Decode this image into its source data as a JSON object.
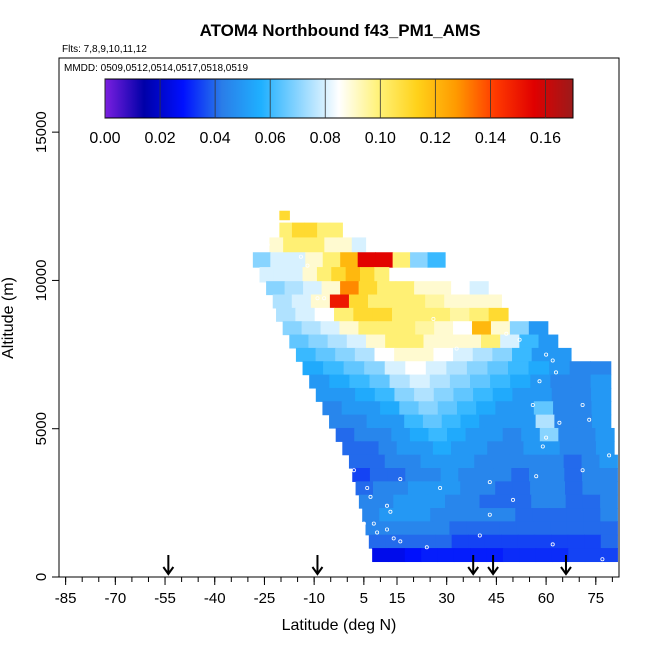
{
  "chart_data": {
    "type": "heatmap",
    "title": "ATOM4 Northbound f43_PM1_AMS",
    "subtitle_flights": "Flts: 7,8,9,10,11,12",
    "subtitle_dates": "MMDD: 0509,0512,0514,0517,0518,0519",
    "xlabel": "Latitude (deg N)",
    "ylabel": "Altitude (m)",
    "xlim": [
      -87,
      82
    ],
    "ylim": [
      0,
      17500
    ],
    "x_ticks": [
      -85,
      -70,
      -55,
      -40,
      -25,
      -10,
      5,
      15,
      30,
      45,
      60,
      75
    ],
    "x_tick_labels": [
      "-85",
      "-70",
      "-55",
      "-40",
      "-25",
      "-10",
      "5",
      "15",
      "30",
      "45",
      "60",
      "75"
    ],
    "x_minor_step": 5,
    "y_ticks": [
      0,
      5000,
      10000,
      15000
    ],
    "y_tick_labels": [
      "0",
      "5000",
      "10000",
      "15000"
    ],
    "colorbar": {
      "min": 0.0,
      "max": 0.17,
      "ticks": [
        0.0,
        0.02,
        0.04,
        0.06,
        0.08,
        0.1,
        0.12,
        0.14,
        0.16
      ],
      "tick_labels": [
        "0.00",
        "0.02",
        "0.04",
        "0.06",
        "0.08",
        "0.10",
        "0.12",
        "0.14",
        "0.16"
      ],
      "colors": [
        "#7b1fe0",
        "#0000a8",
        "#0010ff",
        "#2a7de8",
        "#1fb0ff",
        "#8fd6ff",
        "#ffffff",
        "#fff27a",
        "#ffd21a",
        "#ff9a00",
        "#ff3a00",
        "#e00000",
        "#9c1a1a"
      ]
    },
    "profile_markers_lat": [
      -54,
      -9,
      38,
      44,
      66
    ],
    "altitude_bands": [
      {
        "alt": 12200,
        "h": 300,
        "lat_start": -19,
        "lat_end": -19,
        "values": [
          0.11
        ]
      },
      {
        "alt": 11700,
        "h": 500,
        "lat_start": -19,
        "lat_end": -3,
        "values": [
          0.1,
          0.11,
          0.11,
          0.1,
          0.1
        ]
      },
      {
        "alt": 11200,
        "h": 500,
        "lat_start": -22,
        "lat_end": 4,
        "values": [
          0.09,
          0.1,
          0.1,
          0.1,
          0.09,
          0.09,
          0.08
        ]
      },
      {
        "alt": 10700,
        "h": 500,
        "lat_start": -27,
        "lat_end": 28,
        "values": [
          0.07,
          0.08,
          0.08,
          0.09,
          0.1,
          0.12,
          0.155,
          0.155,
          0.1,
          0.07,
          0.06
        ]
      },
      {
        "alt": 10200,
        "h": 500,
        "lat_start": -25,
        "lat_end": 11,
        "values": [
          0.08,
          0.08,
          0.08,
          0.09,
          0.1,
          0.11,
          0.12,
          0.11,
          0.1
        ]
      },
      {
        "alt": 9750,
        "h": 450,
        "lat_start": -23,
        "lat_end": 41,
        "values": [
          0.07,
          0.075,
          0.08,
          0.09,
          0.13,
          0.11,
          0.1,
          0.1,
          0.09,
          0.09,
          0.085,
          0.08
        ]
      },
      {
        "alt": 9300,
        "h": 450,
        "lat_start": -21,
        "lat_end": 45,
        "values": [
          0.075,
          0.08,
          0.09,
          0.15,
          0.11,
          0.1,
          0.1,
          0.1,
          0.095,
          0.09,
          0.09,
          0.09
        ]
      },
      {
        "alt": 8850,
        "h": 450,
        "lat_start": -20,
        "lat_end": 47,
        "values": [
          0.075,
          0.08,
          0.085,
          0.1,
          0.11,
          0.11,
          0.1,
          0.1,
          0.1,
          0.095,
          0.1,
          0.11
        ]
      },
      {
        "alt": 8400,
        "h": 450,
        "lat_start": -18,
        "lat_end": 59,
        "values": [
          0.07,
          0.075,
          0.08,
          0.09,
          0.1,
          0.1,
          0.1,
          0.095,
          0.09,
          0.085,
          0.12,
          0.09,
          0.07,
          0.05
        ]
      },
      {
        "alt": 7950,
        "h": 450,
        "lat_start": -16,
        "lat_end": 62,
        "values": [
          0.065,
          0.07,
          0.075,
          0.08,
          0.09,
          0.1,
          0.1,
          0.09,
          0.09,
          0.09,
          0.1,
          0.08,
          0.06,
          0.05
        ]
      },
      {
        "alt": 7500,
        "h": 450,
        "lat_start": -14,
        "lat_end": 66,
        "values": [
          0.06,
          0.065,
          0.07,
          0.075,
          0.085,
          0.09,
          0.09,
          0.085,
          0.08,
          0.075,
          0.07,
          0.06,
          0.05,
          0.05
        ]
      },
      {
        "alt": 7050,
        "h": 450,
        "lat_start": -12,
        "lat_end": 78,
        "values": [
          0.055,
          0.06,
          0.065,
          0.07,
          0.08,
          0.085,
          0.08,
          0.075,
          0.07,
          0.065,
          0.06,
          0.055,
          0.05,
          0.045,
          0.045
        ]
      },
      {
        "alt": 6600,
        "h": 450,
        "lat_start": -10,
        "lat_end": 78,
        "values": [
          0.05,
          0.055,
          0.06,
          0.065,
          0.075,
          0.08,
          0.075,
          0.07,
          0.065,
          0.06,
          0.055,
          0.05,
          0.045,
          0.045,
          0.05
        ]
      },
      {
        "alt": 6150,
        "h": 450,
        "lat_start": -8,
        "lat_end": 78,
        "values": [
          0.05,
          0.05,
          0.055,
          0.06,
          0.07,
          0.075,
          0.07,
          0.065,
          0.06,
          0.055,
          0.05,
          0.05,
          0.045,
          0.045,
          0.05
        ]
      },
      {
        "alt": 5700,
        "h": 450,
        "lat_start": -6,
        "lat_end": 78,
        "values": [
          0.045,
          0.05,
          0.05,
          0.055,
          0.065,
          0.07,
          0.065,
          0.06,
          0.055,
          0.05,
          0.05,
          0.065,
          0.045,
          0.045,
          0.05
        ]
      },
      {
        "alt": 5250,
        "h": 450,
        "lat_start": -4,
        "lat_end": 78,
        "values": [
          0.045,
          0.045,
          0.05,
          0.05,
          0.06,
          0.065,
          0.06,
          0.055,
          0.05,
          0.05,
          0.05,
          0.075,
          0.045,
          0.045,
          0.05
        ]
      },
      {
        "alt": 4800,
        "h": 450,
        "lat_start": -2,
        "lat_end": 79,
        "values": [
          0.04,
          0.045,
          0.045,
          0.05,
          0.055,
          0.06,
          0.055,
          0.05,
          0.05,
          0.045,
          0.05,
          0.07,
          0.045,
          0.045,
          0.05
        ]
      },
      {
        "alt": 4350,
        "h": 450,
        "lat_start": 0,
        "lat_end": 79,
        "values": [
          0.04,
          0.04,
          0.045,
          0.05,
          0.05,
          0.055,
          0.05,
          0.05,
          0.045,
          0.045,
          0.05,
          0.05,
          0.045,
          0.045,
          0.05
        ]
      },
      {
        "alt": 3900,
        "h": 450,
        "lat_start": 2,
        "lat_end": 80,
        "values": [
          0.04,
          0.04,
          0.045,
          0.045,
          0.05,
          0.05,
          0.05,
          0.045,
          0.045,
          0.045,
          0.045,
          0.045,
          0.04,
          0.045,
          0.05
        ]
      },
      {
        "alt": 3450,
        "h": 450,
        "lat_start": 3,
        "lat_end": 80,
        "values": [
          0.035,
          0.04,
          0.04,
          0.045,
          0.045,
          0.05,
          0.045,
          0.045,
          0.045,
          0.04,
          0.045,
          0.045,
          0.04,
          0.045,
          0.045
        ]
      },
      {
        "alt": 3000,
        "h": 450,
        "lat_start": 4,
        "lat_end": 80,
        "values": [
          0.04,
          0.045,
          0.045,
          0.05,
          0.05,
          0.05,
          0.045,
          0.045,
          0.04,
          0.04,
          0.045,
          0.045,
          0.04,
          0.045,
          0.045
        ]
      },
      {
        "alt": 2550,
        "h": 450,
        "lat_start": 5,
        "lat_end": 80,
        "values": [
          0.045,
          0.045,
          0.05,
          0.05,
          0.05,
          0.045,
          0.045,
          0.04,
          0.04,
          0.04,
          0.045,
          0.045,
          0.04,
          0.04,
          0.045
        ]
      },
      {
        "alt": 2100,
        "h": 450,
        "lat_start": 6,
        "lat_end": 80,
        "values": [
          0.045,
          0.05,
          0.05,
          0.05,
          0.045,
          0.045,
          0.045,
          0.045,
          0.045,
          0.04,
          0.04,
          0.04,
          0.04,
          0.04,
          0.045
        ]
      },
      {
        "alt": 1650,
        "h": 450,
        "lat_start": 7,
        "lat_end": 80,
        "values": [
          0.045,
          0.045,
          0.045,
          0.045,
          0.045,
          0.04,
          0.04,
          0.04,
          0.04,
          0.04,
          0.04,
          0.04,
          0.04,
          0.04,
          0.04
        ]
      },
      {
        "alt": 1200,
        "h": 450,
        "lat_start": 8,
        "lat_end": 80,
        "values": [
          0.04,
          0.04,
          0.04,
          0.04,
          0.04,
          0.035,
          0.035,
          0.035,
          0.035,
          0.035,
          0.035,
          0.035,
          0.035,
          0.035,
          0.04
        ]
      },
      {
        "alt": 750,
        "h": 450,
        "lat_start": 9,
        "lat_end": 80,
        "values": [
          0.025,
          0.025,
          0.028,
          0.03,
          0.03,
          0.03,
          0.03,
          0.03,
          0.032,
          0.032,
          0.032,
          0.032,
          0.035,
          0.035,
          0.035
        ]
      }
    ],
    "sample_points": [
      [
        -24,
        11200
      ],
      [
        -14,
        10800
      ],
      [
        -12,
        10500
      ],
      [
        -7,
        9400
      ],
      [
        -9,
        9400
      ],
      [
        14,
        10200
      ],
      [
        24,
        10300
      ],
      [
        26,
        8700
      ],
      [
        33,
        7700
      ],
      [
        48,
        8200
      ],
      [
        52,
        8000
      ],
      [
        60,
        7500
      ],
      [
        63,
        6900
      ],
      [
        58,
        6600
      ],
      [
        71,
        5800
      ],
      [
        64,
        5200
      ],
      [
        60,
        4700
      ],
      [
        59,
        4400
      ],
      [
        79,
        4100
      ],
      [
        2,
        3600
      ],
      [
        16,
        3300
      ],
      [
        6,
        3000
      ],
      [
        28,
        3000
      ],
      [
        43,
        3200
      ],
      [
        57,
        3400
      ],
      [
        12,
        2400
      ],
      [
        43,
        2100
      ],
      [
        8,
        1800
      ],
      [
        12,
        1600
      ],
      [
        14,
        1300
      ],
      [
        16,
        1200
      ],
      [
        62,
        1100
      ],
      [
        24,
        1000
      ],
      [
        77,
        600
      ],
      [
        9,
        1500
      ],
      [
        13,
        2200
      ],
      [
        50,
        2600
      ],
      [
        71,
        3600
      ],
      [
        5,
        1800
      ],
      [
        7,
        2700
      ],
      [
        40,
        1400
      ],
      [
        56,
        5800
      ],
      [
        62,
        7300
      ],
      [
        73,
        5300
      ]
    ]
  }
}
